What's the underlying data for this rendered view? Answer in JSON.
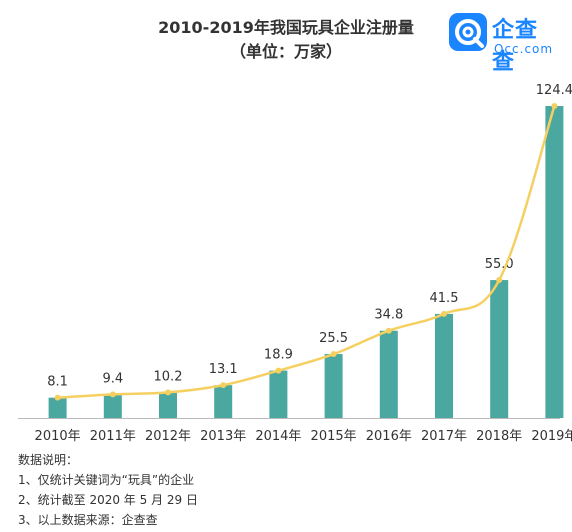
{
  "header": {
    "title": "2010-2019年我国玩具企业注册量",
    "subtitle": "（单位：万家）"
  },
  "logo": {
    "name": "企查查",
    "domain": "Qcc.com",
    "icon": "magnifier-q-icon",
    "color": "#1a85ff"
  },
  "chart_data": {
    "type": "bar",
    "categories": [
      "2010年",
      "2011年",
      "2012年",
      "2013年",
      "2014年",
      "2015年",
      "2016年",
      "2017年",
      "2018年",
      "2019年"
    ],
    "values": [
      8.1,
      9.4,
      10.2,
      13.1,
      18.9,
      25.5,
      34.8,
      41.5,
      55.0,
      124.4
    ],
    "value_labels": [
      "8.1",
      "9.4",
      "10.2",
      "13.1",
      "18.9",
      "25.5",
      "34.8",
      "41.5",
      "55.0",
      "124.4"
    ],
    "overlay": "line",
    "bar_color": "#4aa8a0",
    "line_color": "#f5d061",
    "ylim": [
      0,
      124.4
    ],
    "grid": false,
    "legend": "none"
  },
  "notes": {
    "heading": "数据说明：",
    "items": [
      "1、仅统计关键词为“玩具”的企业",
      "2、统计截至 2020 年 5 月 29 日",
      "3、以上数据来源：企查查"
    ]
  }
}
